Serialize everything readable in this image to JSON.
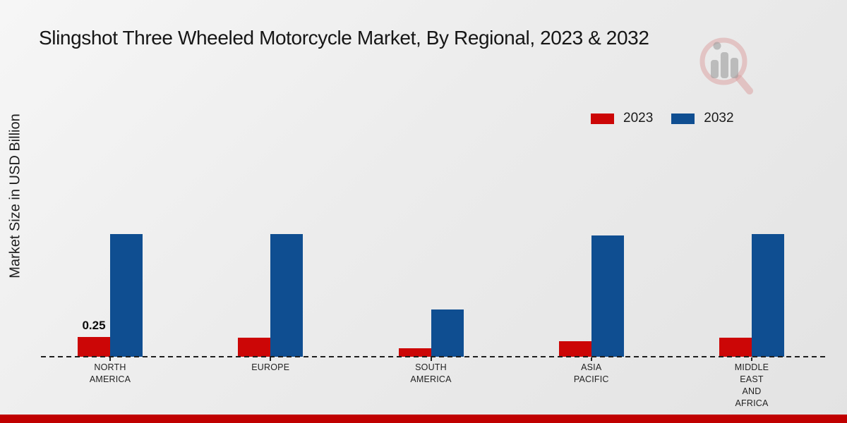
{
  "page": {
    "background_color": "#ebebeb",
    "footer_color": "#C00000",
    "watermark_icon": "magnifier-bar-chart-logo"
  },
  "chart_data": {
    "type": "bar",
    "title": "Slingshot Three Wheeled Motorcycle Market, By Regional, 2023 & 2032",
    "ylabel": "Market Size in USD Billion",
    "xlabel": "",
    "categories": [
      "NORTH AMERICA",
      "EUROPE",
      "SOUTH AMERICA",
      "ASIA PACIFIC",
      "MIDDLE EAST AND AFRICA"
    ],
    "category_label_lines": [
      [
        "NORTH",
        "AMERICA"
      ],
      [
        "EUROPE"
      ],
      [
        "SOUTH",
        "AMERICA"
      ],
      [
        "ASIA",
        "PACIFIC"
      ],
      [
        "MIDDLE",
        "EAST",
        "AND",
        "AFRICA"
      ]
    ],
    "series": [
      {
        "name": "2023",
        "color": "#CC0606",
        "values": [
          0.25,
          0.24,
          0.11,
          0.2,
          0.24
        ]
      },
      {
        "name": "2032",
        "color": "#0F4E91",
        "values": [
          1.55,
          1.55,
          0.6,
          1.54,
          1.55
        ]
      }
    ],
    "data_labels": [
      {
        "series": "2023",
        "category": "NORTH AMERICA",
        "text": "0.25"
      }
    ],
    "ylim": [
      0,
      1.8
    ],
    "grid": false,
    "legend_position": "top-right",
    "axis_line_style": "dashed"
  }
}
